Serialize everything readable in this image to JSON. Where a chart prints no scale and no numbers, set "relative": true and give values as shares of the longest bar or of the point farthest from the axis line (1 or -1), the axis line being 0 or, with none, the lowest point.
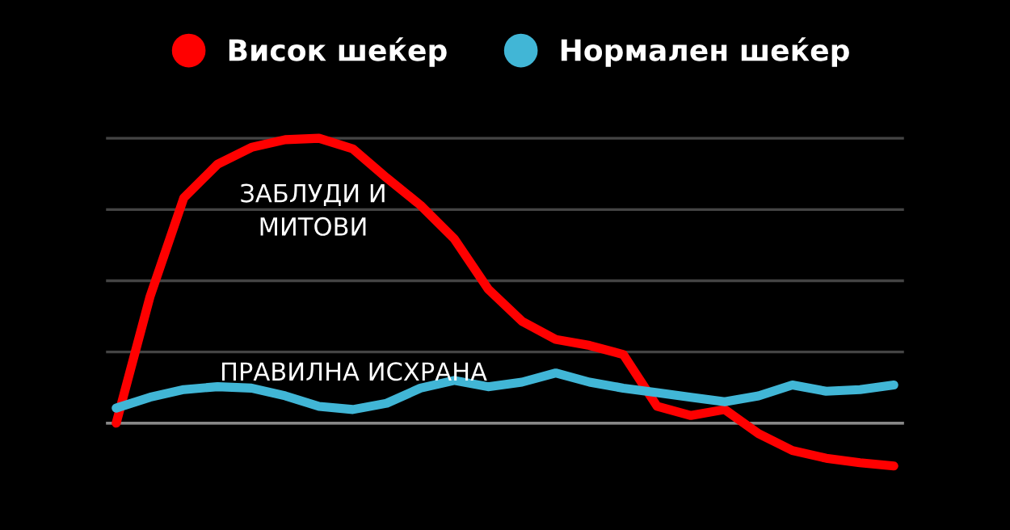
{
  "chart_data": {
    "type": "line",
    "relative": true,
    "categories": [
      null,
      null,
      null,
      null,
      null,
      null,
      null,
      null,
      null,
      null,
      null,
      null,
      null,
      null,
      null,
      null,
      null,
      null,
      null,
      null,
      null,
      null,
      null,
      null
    ],
    "series": [
      {
        "name": "Висок шеќер",
        "color": "#ff0000",
        "values": [
          0,
          0.444,
          0.791,
          0.909,
          0.968,
          0.995,
          1,
          0.963,
          0.861,
          0.765,
          0.647,
          0.471,
          0.358,
          0.294,
          0.273,
          0.241,
          0.059,
          0.027,
          0.048,
          -0.037,
          -0.096,
          -0.123,
          -0.139,
          -0.15
        ]
      },
      {
        "name": "Нормален шеќер",
        "color": "#41b6d6",
        "values": [
          0.053,
          0.091,
          0.118,
          0.128,
          0.123,
          0.096,
          0.059,
          0.048,
          0.07,
          0.123,
          0.15,
          0.128,
          0.144,
          0.176,
          0.144,
          0.123,
          0.107,
          0.091,
          0.075,
          0.096,
          0.134,
          0.112,
          0.118,
          0.134
        ]
      }
    ],
    "annotations": [
      "ЗАБЛУДИ И\nМИТОВИ",
      "ПРАВИЛНА ИСХРАНА"
    ],
    "grid": "y",
    "legend": "top",
    "marker": "none",
    "line_style": "solid"
  }
}
